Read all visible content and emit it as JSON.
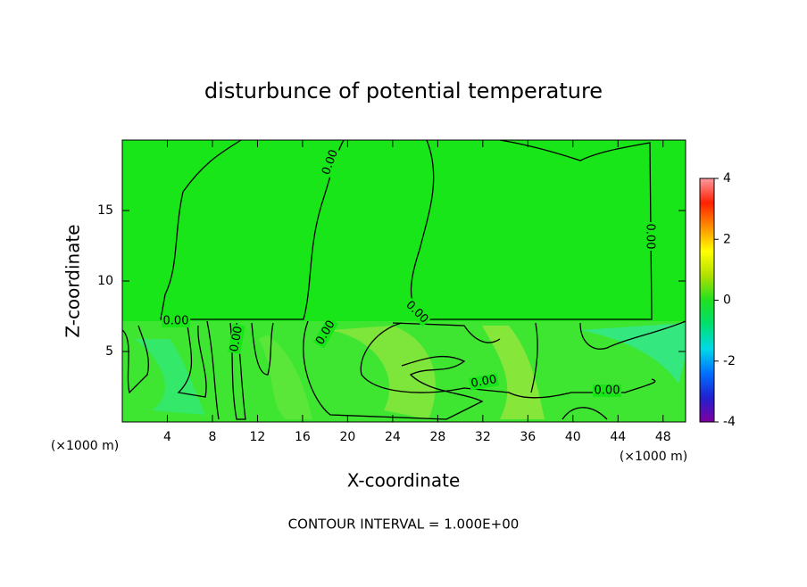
{
  "chart_data": {
    "type": "contour",
    "title": "disturbunce of potential temperature",
    "xlabel": "X-coordinate",
    "ylabel": "Z-coordinate",
    "yunit": "(×1000 m)",
    "xunit": "(×1000 m)",
    "annotation": "CONTOUR INTERVAL = 1.000E+00",
    "xlim": [
      0,
      50
    ],
    "xticks": [
      4,
      8,
      12,
      16,
      20,
      24,
      28,
      32,
      36,
      40,
      44,
      48
    ],
    "ylim": [
      0,
      20
    ],
    "yticks": [
      5,
      10,
      15
    ],
    "levels": [
      {
        "value": 0,
        "label": "0.00"
      }
    ],
    "colorbar": {
      "lim": [
        -4,
        4
      ],
      "ticks": [
        -4,
        -2,
        0,
        2,
        4
      ],
      "colormap": [
        "#8000a0",
        "#2020d0",
        "#0070ff",
        "#00d8e8",
        "#00e070",
        "#20e020",
        "#b0e000",
        "#ffff00",
        "#ff9000",
        "#ff2000",
        "#ff9aa0"
      ]
    }
  }
}
